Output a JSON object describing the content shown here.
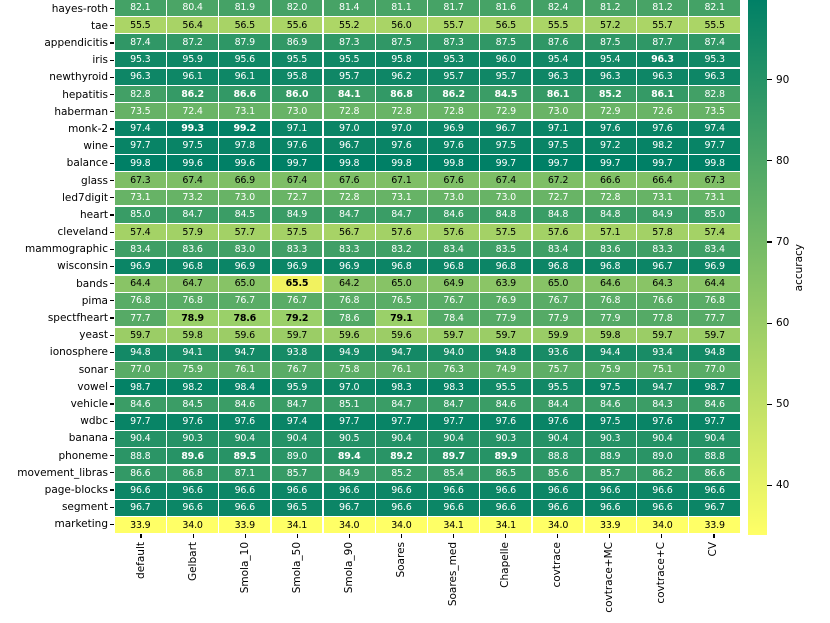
{
  "chart_data": {
    "type": "heatmap",
    "colorbar_label": "accuracy",
    "colorbar_ticks": [
      90,
      80,
      70,
      60,
      50,
      40
    ],
    "vmin": 33.9,
    "vmax": 99.8,
    "colormap": "summer_r",
    "legend_position": "right",
    "grid": "white-lines",
    "columns": [
      "default",
      "Gelbart",
      "Smola_10",
      "Smola_50",
      "Smola_90",
      "Soares",
      "Soares_med",
      "Chapelle",
      "covtrace",
      "covtrace+MC",
      "covtrace+C",
      "CV"
    ],
    "rows": [
      "hayes-roth",
      "tae",
      "appendicitis",
      "iris",
      "newthyroid",
      "hepatitis",
      "haberman",
      "monk-2",
      "wine",
      "balance",
      "glass",
      "led7digit",
      "heart",
      "cleveland",
      "mammographic",
      "wisconsin",
      "bands",
      "pima",
      "spectfheart",
      "yeast",
      "ionosphere",
      "sonar",
      "vowel",
      "vehicle",
      "wdbc",
      "banana",
      "phoneme",
      "movement_libras",
      "page-blocks",
      "segment",
      "marketing"
    ],
    "values": [
      [
        82.1,
        80.4,
        81.9,
        82.0,
        81.4,
        81.1,
        81.7,
        81.6,
        82.4,
        81.2,
        81.2,
        82.1
      ],
      [
        55.5,
        56.4,
        56.5,
        55.6,
        55.2,
        56.0,
        55.7,
        56.5,
        55.5,
        57.2,
        55.7,
        55.5
      ],
      [
        87.4,
        87.2,
        87.9,
        86.9,
        87.3,
        87.5,
        87.3,
        87.5,
        87.6,
        87.5,
        87.7,
        87.4
      ],
      [
        95.3,
        95.9,
        95.6,
        95.5,
        95.5,
        95.8,
        95.3,
        96.0,
        95.4,
        95.4,
        96.3,
        95.3
      ],
      [
        96.3,
        96.1,
        96.1,
        95.8,
        95.7,
        96.2,
        95.7,
        95.7,
        96.3,
        96.3,
        96.3,
        96.3
      ],
      [
        82.8,
        86.2,
        86.6,
        86.0,
        84.1,
        86.8,
        86.2,
        84.5,
        86.1,
        85.2,
        86.1,
        82.8
      ],
      [
        73.5,
        72.4,
        73.1,
        73.0,
        72.8,
        72.8,
        72.8,
        72.9,
        73.0,
        72.9,
        72.6,
        73.5
      ],
      [
        97.4,
        99.3,
        99.2,
        97.1,
        97.0,
        97.0,
        96.9,
        96.7,
        97.1,
        97.6,
        97.6,
        97.4
      ],
      [
        97.7,
        97.5,
        97.8,
        97.6,
        96.7,
        97.6,
        97.6,
        97.5,
        97.5,
        97.2,
        98.2,
        97.7
      ],
      [
        99.8,
        99.6,
        99.6,
        99.7,
        99.8,
        99.8,
        99.8,
        99.7,
        99.7,
        99.7,
        99.7,
        99.8
      ],
      [
        67.3,
        67.4,
        66.9,
        67.4,
        67.6,
        67.1,
        67.6,
        67.4,
        67.2,
        66.6,
        66.4,
        67.3
      ],
      [
        73.1,
        73.2,
        73.0,
        72.7,
        72.8,
        73.1,
        73.0,
        73.0,
        72.7,
        72.8,
        73.1,
        73.1
      ],
      [
        85.0,
        84.7,
        84.5,
        84.9,
        84.7,
        84.7,
        84.6,
        84.8,
        84.8,
        84.8,
        84.9,
        85.0
      ],
      [
        57.4,
        57.9,
        57.7,
        57.5,
        56.7,
        57.6,
        57.6,
        57.5,
        57.6,
        57.1,
        57.8,
        57.4
      ],
      [
        83.4,
        83.6,
        83.0,
        83.3,
        83.3,
        83.2,
        83.4,
        83.5,
        83.4,
        83.6,
        83.3,
        83.4
      ],
      [
        96.9,
        96.8,
        96.9,
        96.9,
        96.9,
        96.8,
        96.8,
        96.8,
        96.8,
        96.8,
        96.7,
        96.9
      ],
      [
        64.4,
        64.7,
        65.0,
        65.5,
        64.2,
        65.0,
        64.9,
        63.9,
        65.0,
        64.6,
        64.3,
        64.4
      ],
      [
        76.8,
        76.8,
        76.7,
        76.7,
        76.8,
        76.5,
        76.7,
        76.9,
        76.7,
        76.8,
        76.6,
        76.8
      ],
      [
        77.7,
        78.9,
        78.6,
        79.2,
        78.6,
        79.1,
        78.4,
        77.9,
        77.9,
        77.9,
        77.8,
        77.7
      ],
      [
        59.7,
        59.8,
        59.6,
        59.7,
        59.6,
        59.6,
        59.7,
        59.7,
        59.9,
        59.8,
        59.7,
        59.7
      ],
      [
        94.8,
        94.1,
        94.7,
        93.8,
        94.9,
        94.7,
        94.0,
        94.8,
        93.6,
        94.4,
        93.4,
        94.8
      ],
      [
        77.0,
        75.9,
        76.1,
        76.7,
        75.8,
        76.1,
        76.3,
        74.9,
        75.7,
        75.9,
        75.1,
        77.0
      ],
      [
        98.7,
        98.2,
        98.4,
        95.9,
        97.0,
        98.3,
        98.3,
        95.5,
        95.5,
        97.5,
        94.7,
        98.7
      ],
      [
        84.6,
        84.5,
        84.6,
        84.7,
        85.1,
        84.7,
        84.7,
        84.6,
        84.4,
        84.6,
        84.3,
        84.6
      ],
      [
        97.7,
        97.6,
        97.6,
        97.4,
        97.7,
        97.7,
        97.7,
        97.6,
        97.6,
        97.5,
        97.6,
        97.7
      ],
      [
        90.4,
        90.3,
        90.4,
        90.4,
        90.5,
        90.4,
        90.4,
        90.3,
        90.4,
        90.3,
        90.4,
        90.4
      ],
      [
        88.8,
        89.6,
        89.5,
        89.0,
        89.4,
        89.2,
        89.7,
        89.9,
        88.8,
        88.9,
        89.0,
        88.8
      ],
      [
        86.6,
        86.8,
        87.1,
        85.7,
        84.9,
        85.2,
        85.4,
        86.5,
        85.6,
        85.7,
        86.2,
        86.6
      ],
      [
        96.6,
        96.6,
        96.6,
        96.6,
        96.6,
        96.6,
        96.6,
        96.6,
        96.6,
        96.6,
        96.6,
        96.6
      ],
      [
        96.7,
        96.6,
        96.6,
        96.5,
        96.7,
        96.6,
        96.6,
        96.6,
        96.6,
        96.6,
        96.6,
        96.7
      ],
      [
        33.9,
        34.0,
        33.9,
        34.1,
        34.0,
        34.0,
        34.1,
        34.1,
        34.0,
        33.9,
        34.0,
        33.9
      ]
    ],
    "bold_cells": [
      [
        3,
        10
      ],
      [
        5,
        1
      ],
      [
        5,
        2
      ],
      [
        5,
        3
      ],
      [
        5,
        4
      ],
      [
        5,
        5
      ],
      [
        5,
        6
      ],
      [
        5,
        7
      ],
      [
        5,
        8
      ],
      [
        5,
        9
      ],
      [
        5,
        10
      ],
      [
        7,
        1
      ],
      [
        7,
        2
      ],
      [
        16,
        3
      ],
      [
        18,
        1
      ],
      [
        18,
        2
      ],
      [
        18,
        3
      ],
      [
        18,
        5
      ],
      [
        26,
        1
      ],
      [
        26,
        2
      ],
      [
        26,
        4
      ],
      [
        26,
        5
      ],
      [
        26,
        6
      ],
      [
        26,
        7
      ]
    ],
    "highlight_cells": [
      {
        "row": 16,
        "col": 3,
        "bg": "#f1f25f"
      },
      {
        "row": 18,
        "col": 1,
        "bg": "#9ad069"
      },
      {
        "row": 18,
        "col": 2,
        "bg": "#9ad069"
      },
      {
        "row": 18,
        "col": 3,
        "bg": "#9ad069"
      },
      {
        "row": 18,
        "col": 5,
        "bg": "#9ad069"
      }
    ],
    "colors": {
      "cmap_high": "#008066",
      "cmap_low": "#ffff66",
      "gridline": "#ffffff",
      "text_dark": "#000000",
      "text_light": "#ffffff"
    }
  }
}
